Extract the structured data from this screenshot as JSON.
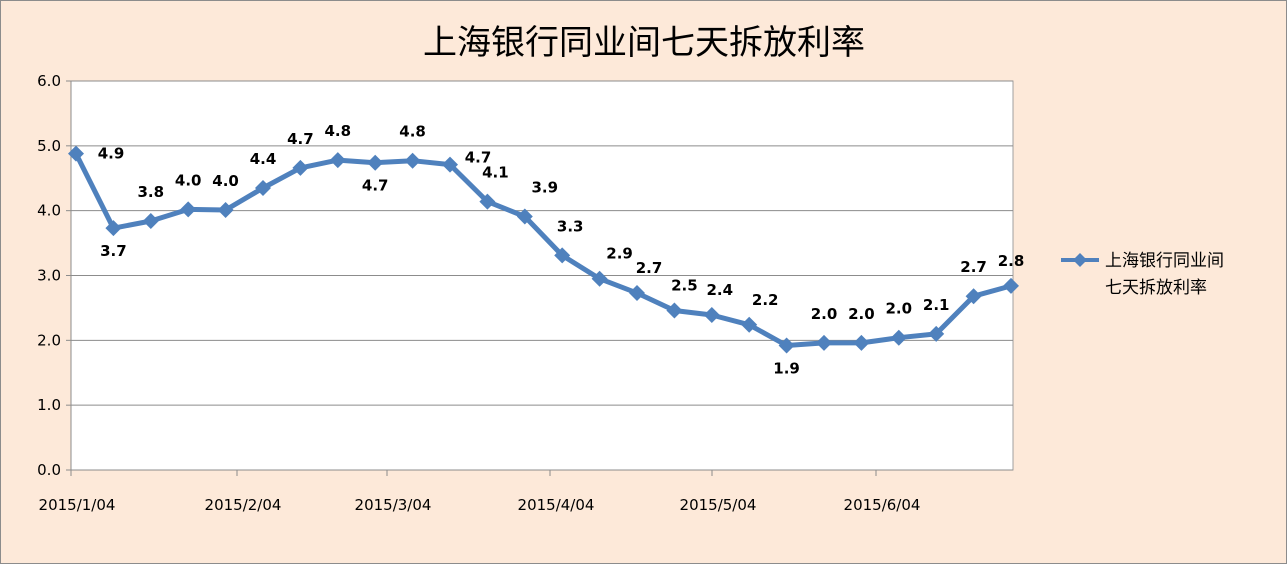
{
  "chart_data": {
    "type": "line",
    "title": "上海银行同业间七天拆放利率",
    "xlabel": "",
    "ylabel": "",
    "ylim": [
      0,
      6
    ],
    "y_ticks": [
      "0.0",
      "1.0",
      "2.0",
      "3.0",
      "4.0",
      "5.0",
      "6.0"
    ],
    "x_tick_labels": [
      "2015/1/04",
      "2015/2/04",
      "2015/3/04",
      "2015/4/04",
      "2015/5/04",
      "2015/6/04"
    ],
    "grid": true,
    "legend_position": "right",
    "series": [
      {
        "name": "上海银行同业间七天拆放利率",
        "legend_lines": [
          "上海银行同业间",
          "七天拆放利率"
        ],
        "color": "#4f81bd",
        "values": [
          4.88,
          3.73,
          3.84,
          4.02,
          4.01,
          4.35,
          4.66,
          4.78,
          4.74,
          4.77,
          4.71,
          4.14,
          3.91,
          3.31,
          2.95,
          2.73,
          2.46,
          2.39,
          2.24,
          1.92,
          1.96,
          1.96,
          2.04,
          2.1,
          2.68,
          2.84
        ],
        "labels": [
          "4.9",
          "3.7",
          "3.8",
          "4.0",
          "4.0",
          "4.4",
          "4.7",
          "4.8",
          "4.7",
          "4.8",
          "4.7",
          "4.1",
          "3.9",
          "3.3",
          "2.9",
          "2.7",
          "2.5",
          "2.4",
          "2.2",
          "1.9",
          "2.0",
          "2.0",
          "2.0",
          "2.1",
          "2.7",
          "2.8"
        ]
      }
    ]
  }
}
